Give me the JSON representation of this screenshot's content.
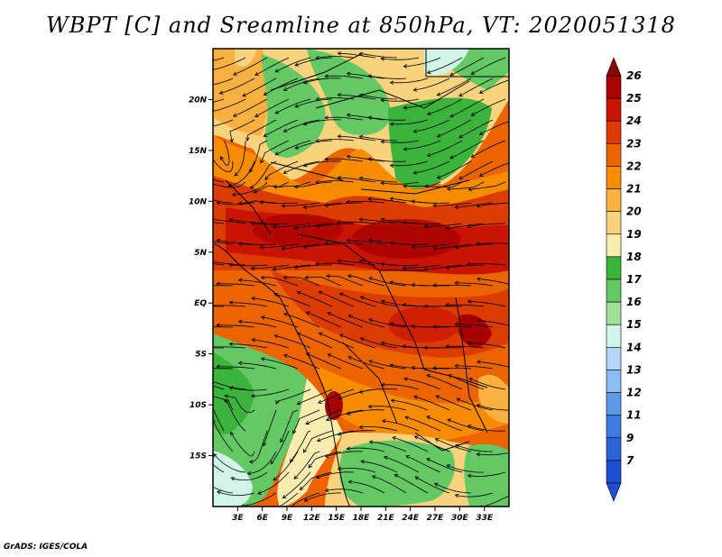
{
  "title": "WBPT [C] and Sreamline at 850hPa, VT: 2020051318",
  "credit": "GrADS: IGES/COLA",
  "map": {
    "lat_ticks": [
      "20N",
      "15N",
      "10N",
      "5N",
      "EQ",
      "5S",
      "10S",
      "15S"
    ],
    "lon_ticks": [
      "3E",
      "6E",
      "9E",
      "12E",
      "15E",
      "18E",
      "21E",
      "24E",
      "27E",
      "30E",
      "33E"
    ],
    "lat_values": [
      20,
      15,
      10,
      5,
      0,
      -5,
      -10,
      -15
    ],
    "lon_values": [
      3,
      6,
      9,
      12,
      15,
      18,
      21,
      24,
      27,
      30,
      33
    ],
    "lat_range": [
      -20,
      25
    ],
    "lon_range": [
      0,
      36
    ]
  },
  "colorbar": {
    "labels": [
      "26",
      "25",
      "24",
      "23",
      "22",
      "21",
      "20",
      "19",
      "18",
      "17",
      "16",
      "15",
      "14",
      "13",
      "12",
      "11",
      "9",
      "7"
    ],
    "colors": [
      "#a80000",
      "#c81400",
      "#dc3c00",
      "#ec6400",
      "#f88c00",
      "#f8b040",
      "#f8d27c",
      "#f8ecb0",
      "#3cb43c",
      "#64c864",
      "#a0e096",
      "#d0f4e8",
      "#b4d6f8",
      "#8cbcf4",
      "#5c9ae8",
      "#3c7ce0",
      "#2c64d4",
      "#1f4fd0"
    ],
    "top_color": "#8c0000",
    "bottom_color": "#1f4fd0"
  }
}
